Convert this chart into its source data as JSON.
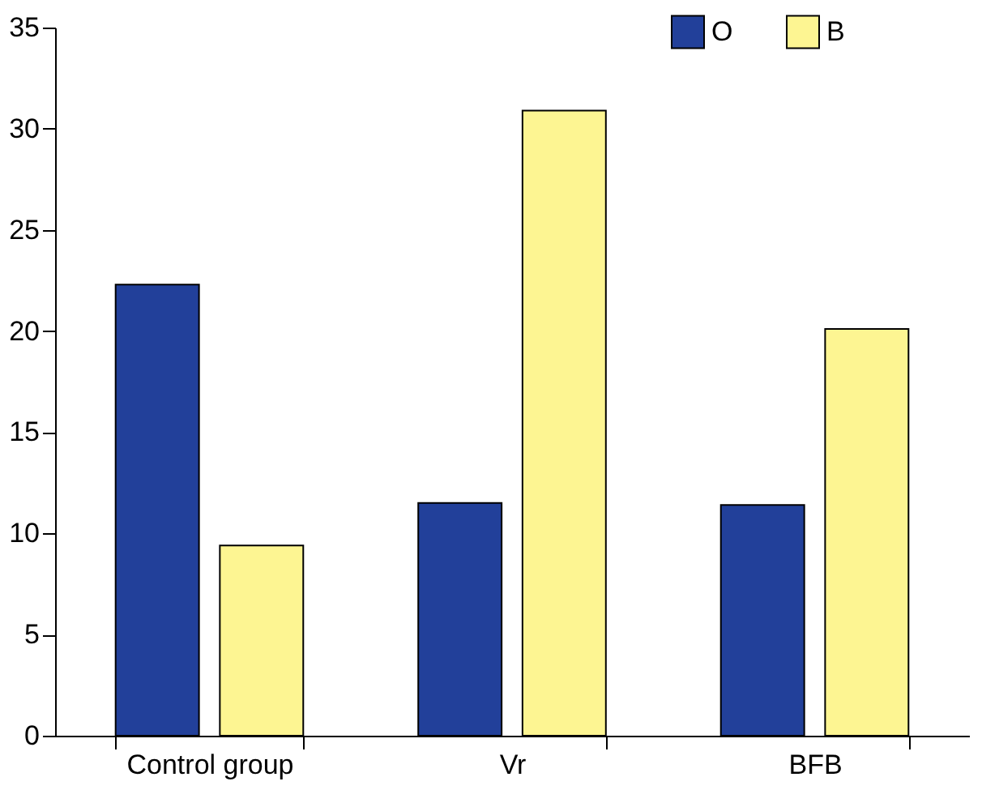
{
  "chart_data": {
    "type": "bar",
    "categories": [
      "Control group",
      "Vr",
      "BFB"
    ],
    "series": [
      {
        "name": "O",
        "color": "#22409a",
        "values": [
          22.3,
          11.5,
          11.4
        ]
      },
      {
        "name": "B",
        "color": "#fdf592",
        "values": [
          9.4,
          30.9,
          20.1
        ]
      }
    ],
    "ylim": [
      0,
      35
    ],
    "yticks": [
      0,
      5,
      10,
      15,
      20,
      25,
      30,
      35
    ],
    "grid": false,
    "legend": "top right"
  }
}
